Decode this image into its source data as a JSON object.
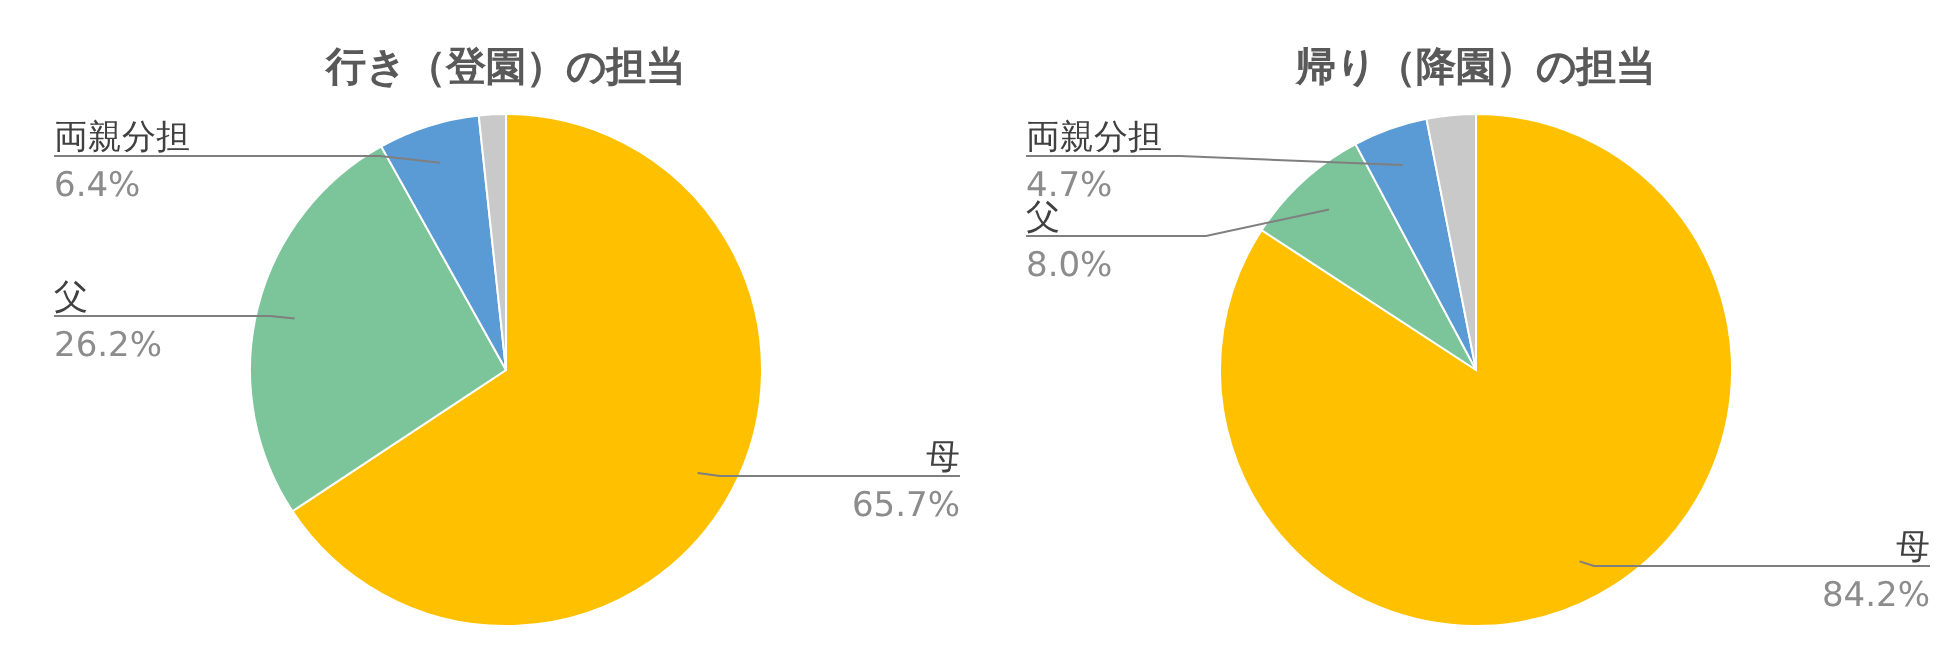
{
  "chart_data": [
    {
      "type": "pie",
      "title": "行き（登園）の担当",
      "categories": [
        "母",
        "父",
        "両親分担",
        null
      ],
      "values": [
        65.7,
        26.2,
        6.4,
        1.7
      ],
      "value_labels": [
        "65.7%",
        "26.2%",
        "6.4%",
        null
      ],
      "colors": [
        "#ffc000",
        "#7cc59b",
        "#5b9bd5",
        "#c9c9c9"
      ],
      "legend": false
    },
    {
      "type": "pie",
      "title": "帰り（降園）の担当",
      "categories": [
        "母",
        "父",
        "両親分担",
        null
      ],
      "values": [
        84.2,
        8.0,
        4.7,
        3.1
      ],
      "value_labels": [
        "84.2%",
        "8.0%",
        "4.7%",
        null
      ],
      "colors": [
        "#ffc000",
        "#7cc59b",
        "#5b9bd5",
        "#c9c9c9"
      ],
      "legend": false
    }
  ]
}
